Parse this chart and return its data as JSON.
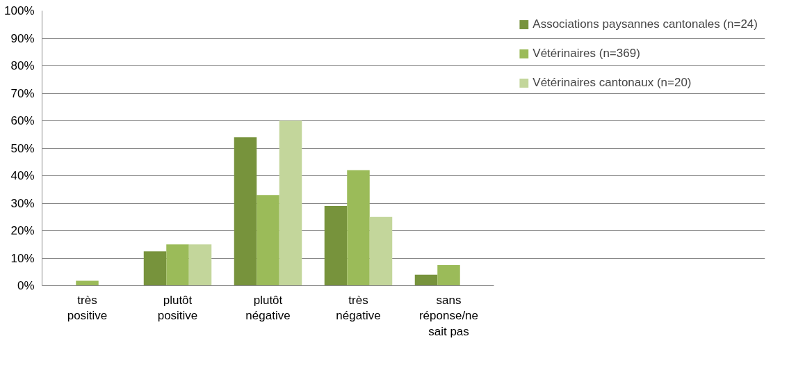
{
  "chart_data": {
    "type": "bar",
    "categories": [
      "très positive",
      "plutôt positive",
      "plutôt négative",
      "très négative",
      "sans réponse/ne sait pas"
    ],
    "series": [
      {
        "name": "Associations paysannes cantonales (n=24)",
        "color": "#77933c",
        "values": [
          0,
          12.5,
          54,
          29,
          4
        ]
      },
      {
        "name": "Vétérinaires (n=369)",
        "color": "#9bbb59",
        "values": [
          1.8,
          15,
          33,
          42,
          7.5
        ]
      },
      {
        "name": "Vétérinaires cantonaux (n=20)",
        "color": "#c3d69b",
        "values": [
          0,
          15,
          60,
          25,
          0
        ]
      }
    ],
    "ylim": [
      0,
      100
    ],
    "yticks": [
      {
        "value": 0,
        "label": "0%"
      },
      {
        "value": 10,
        "label": "10%"
      },
      {
        "value": 20,
        "label": "20%"
      },
      {
        "value": 30,
        "label": "30%"
      },
      {
        "value": 40,
        "label": "40%"
      },
      {
        "value": 50,
        "label": "50%"
      },
      {
        "value": 60,
        "label": "60%"
      },
      {
        "value": 70,
        "label": "70%"
      },
      {
        "value": 80,
        "label": "80%"
      },
      {
        "value": 90,
        "label": "90%"
      },
      {
        "value": 100,
        "label": "100%"
      }
    ],
    "grid": "y",
    "legend": "right"
  }
}
